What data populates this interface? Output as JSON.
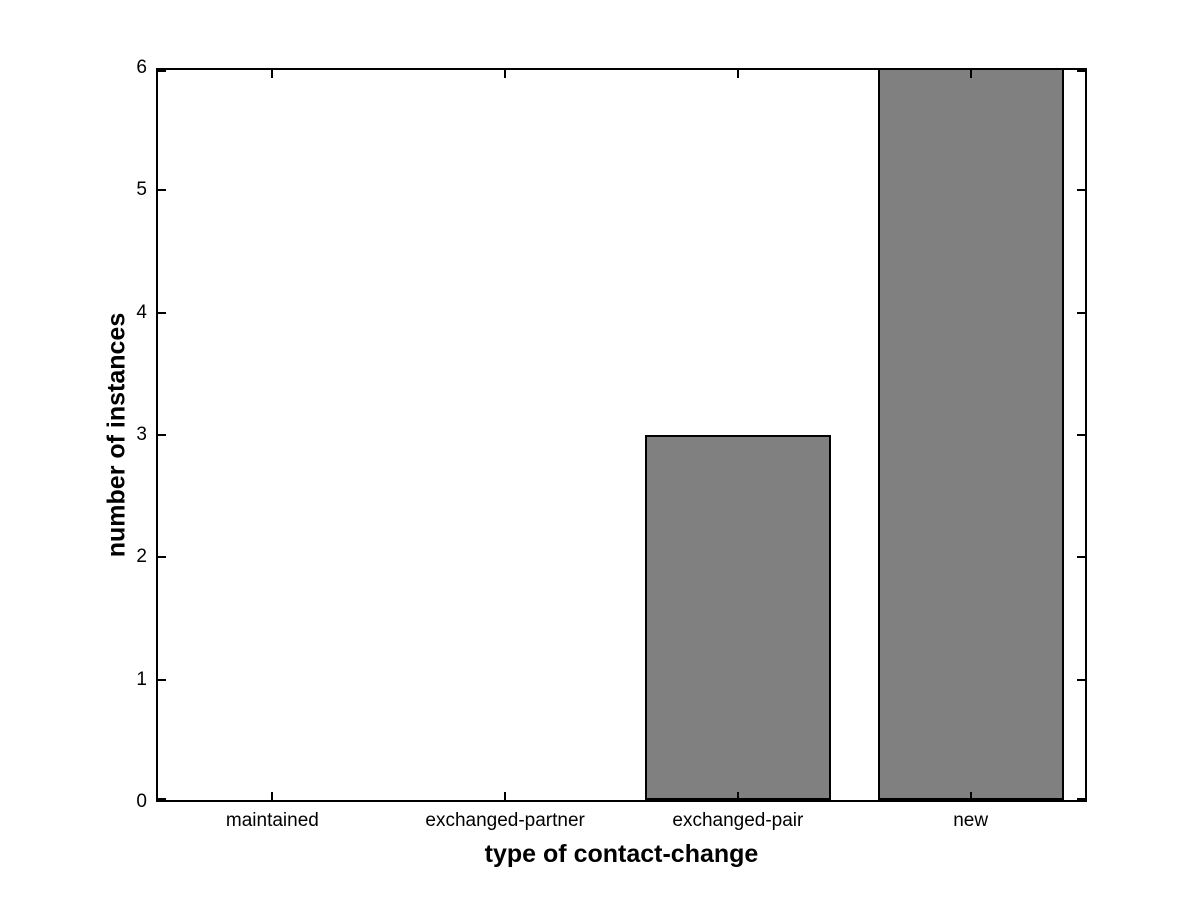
{
  "figure": {
    "background": "#ffffff"
  },
  "chart_data": {
    "type": "bar",
    "xlabel": "type of contact-change",
    "ylabel": "number of instances",
    "categories": [
      "maintained",
      "exchanged-partner",
      "exchanged-pair",
      "new"
    ],
    "values": [
      0,
      0,
      3,
      6
    ],
    "ylim": [
      0,
      6
    ],
    "yticks": [
      0,
      1,
      2,
      3,
      4,
      5,
      6
    ],
    "bar_width_fraction": 0.8,
    "bar_color": "#808080",
    "bar_edge_color": "#000000",
    "axis_color": "#000000",
    "grid": false,
    "box": true,
    "tick_direction": "in"
  }
}
